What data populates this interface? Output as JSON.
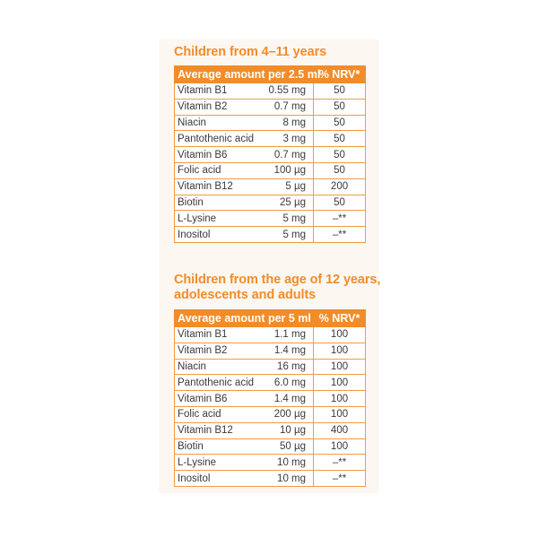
{
  "section1": {
    "title": "Children from 4–11 years",
    "header": {
      "amount": "Average amount per 2.5 ml",
      "nrv": "% NRV*"
    },
    "rows": [
      {
        "name": "Vitamin B1",
        "amount": "0.55 mg",
        "nrv": "50"
      },
      {
        "name": "Vitamin B2",
        "amount": "0.7 mg",
        "nrv": "50"
      },
      {
        "name": "Niacin",
        "amount": "8 mg",
        "nrv": "50"
      },
      {
        "name": "Pantothenic acid",
        "amount": "3 mg",
        "nrv": "50"
      },
      {
        "name": "Vitamin B6",
        "amount": "0.7 mg",
        "nrv": "50"
      },
      {
        "name": "Folic acid",
        "amount": "100 µg",
        "nrv": "50"
      },
      {
        "name": "Vitamin B12",
        "amount": "5 µg",
        "nrv": "200"
      },
      {
        "name": "Biotin",
        "amount": "25 µg",
        "nrv": "50"
      },
      {
        "name": "L-Lysine",
        "amount": "5 mg",
        "nrv": "–**"
      },
      {
        "name": "Inositol",
        "amount": "5 mg",
        "nrv": "–**"
      }
    ]
  },
  "section2": {
    "title_line1": "Children from the age of 12 years,",
    "title_line2": "adolescents and adults",
    "header": {
      "amount": "Average amount per 5 ml",
      "nrv": "% NRV*"
    },
    "rows": [
      {
        "name": "Vitamin B1",
        "amount": "1.1 mg",
        "nrv": "100"
      },
      {
        "name": "Vitamin B2",
        "amount": "1.4 mg",
        "nrv": "100"
      },
      {
        "name": "Niacin",
        "amount": "16 mg",
        "nrv": "100"
      },
      {
        "name": "Pantothenic acid",
        "amount": "6.0 mg",
        "nrv": "100"
      },
      {
        "name": "Vitamin B6",
        "amount": "1.4 mg",
        "nrv": "100"
      },
      {
        "name": "Folic acid",
        "amount": "200 µg",
        "nrv": "100"
      },
      {
        "name": "Vitamin B12",
        "amount": "10 µg",
        "nrv": "400"
      },
      {
        "name": "Biotin",
        "amount": "50 µg",
        "nrv": "100"
      },
      {
        "name": "L-Lysine",
        "amount": "10 mg",
        "nrv": "–**"
      },
      {
        "name": "Inositol",
        "amount": "10 mg",
        "nrv": "–**"
      }
    ]
  },
  "colors": {
    "accent": "#f28c28",
    "panel": "#fdf7f2",
    "text": "#3a3a3a"
  }
}
